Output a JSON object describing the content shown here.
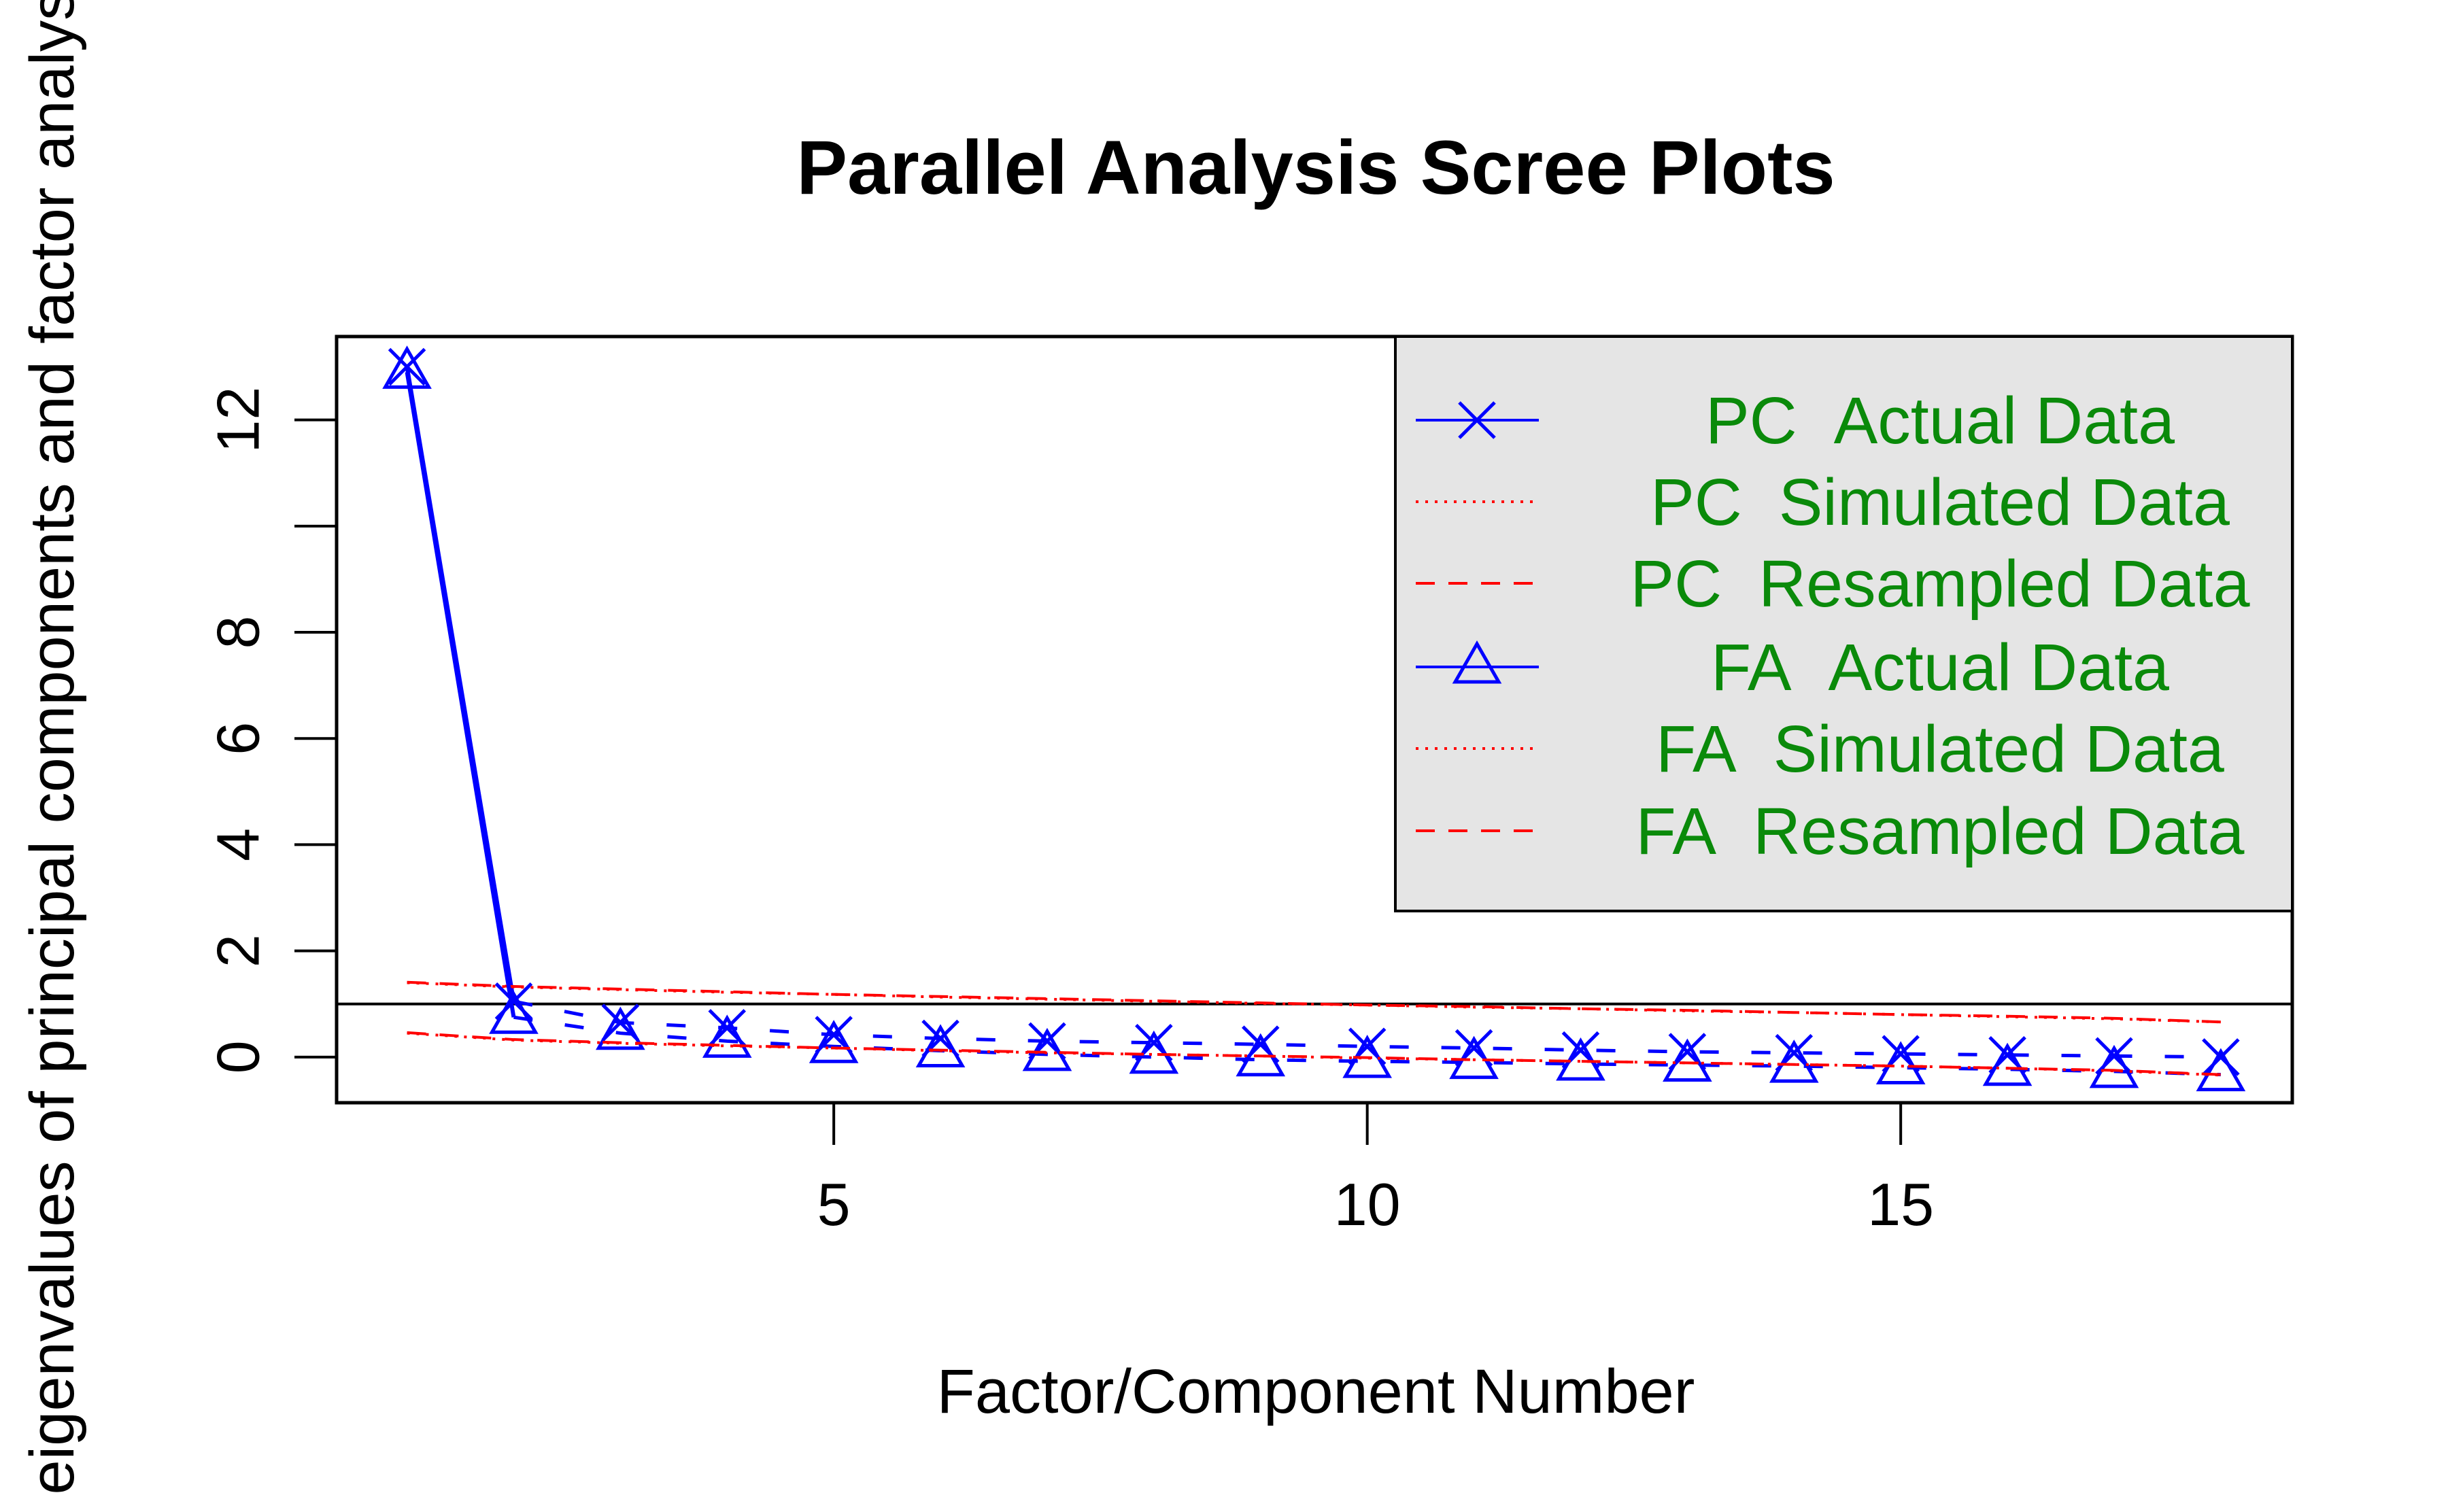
{
  "chart_data": {
    "type": "line",
    "title": "Parallel Analysis Scree Plots",
    "xlabel": "Factor/Component Number",
    "ylabel": "eigenvalues of principal components and factor analysis",
    "xlim": [
      0.34,
      18.67
    ],
    "ylim": [
      -0.86,
      13.57
    ],
    "x_ticks": [
      5,
      10,
      15
    ],
    "x_tick_labels": [
      "5",
      "10",
      "15"
    ],
    "y_ticks": [
      0,
      2,
      4,
      6,
      8,
      10,
      12
    ],
    "y_tick_labels": [
      "0",
      "2",
      "4",
      "6",
      "8",
      "",
      "12"
    ],
    "reference_line_y": 1,
    "grid": false,
    "legend_position": "top-right",
    "x": [
      1,
      2,
      3,
      4,
      5,
      6,
      7,
      8,
      9,
      10,
      11,
      12,
      13,
      14,
      15,
      16,
      17,
      18
    ],
    "series": [
      {
        "name": "PC  Actual Data",
        "color": "#0000ff",
        "style": "solid-x",
        "values": [
          13.0,
          1.05,
          0.65,
          0.55,
          0.42,
          0.35,
          0.3,
          0.27,
          0.24,
          0.2,
          0.17,
          0.13,
          0.1,
          0.08,
          0.06,
          0.04,
          0.02,
          0.0
        ]
      },
      {
        "name": "PC  Simulated Data",
        "color": "#ff0000",
        "style": "dotted",
        "values": [
          1.4,
          1.32,
          1.27,
          1.22,
          1.18,
          1.13,
          1.09,
          1.05,
          1.01,
          0.98,
          0.94,
          0.91,
          0.87,
          0.84,
          0.8,
          0.76,
          0.72,
          0.66
        ]
      },
      {
        "name": "PC  Resampled Data",
        "color": "#ff0000",
        "style": "dashed",
        "values": [
          1.41,
          1.33,
          1.28,
          1.23,
          1.18,
          1.14,
          1.1,
          1.06,
          1.02,
          0.98,
          0.95,
          0.91,
          0.88,
          0.84,
          0.8,
          0.77,
          0.73,
          0.66
        ]
      },
      {
        "name": "FA  Actual Data",
        "color": "#0000ff",
        "style": "solid-triangle",
        "values": [
          12.9,
          0.75,
          0.45,
          0.3,
          0.2,
          0.12,
          0.05,
          0.0,
          -0.05,
          -0.08,
          -0.1,
          -0.13,
          -0.15,
          -0.17,
          -0.2,
          -0.23,
          -0.27,
          -0.33
        ]
      },
      {
        "name": "FA  Simulated Data",
        "color": "#ff0000",
        "style": "dotted",
        "values": [
          0.45,
          0.32,
          0.26,
          0.21,
          0.17,
          0.12,
          0.08,
          0.05,
          0.02,
          -0.02,
          -0.05,
          -0.08,
          -0.11,
          -0.14,
          -0.17,
          -0.21,
          -0.26,
          -0.34
        ]
      },
      {
        "name": "FA  Resampled Data",
        "color": "#ff0000",
        "style": "dashed",
        "values": [
          0.46,
          0.33,
          0.27,
          0.22,
          0.17,
          0.13,
          0.09,
          0.05,
          0.02,
          -0.01,
          -0.05,
          -0.08,
          -0.11,
          -0.14,
          -0.17,
          -0.21,
          -0.25,
          -0.33
        ]
      }
    ],
    "legend": [
      {
        "label": "PC  Actual Data"
      },
      {
        "label": "PC  Simulated Data"
      },
      {
        "label": "PC  Resampled Data"
      },
      {
        "label": "FA  Actual Data"
      },
      {
        "label": "FA  Simulated Data"
      },
      {
        "label": "FA  Resampled Data"
      }
    ],
    "colors": {
      "legend_text": "#0a8a0a",
      "legend_bg": "#e5e5e5"
    }
  }
}
